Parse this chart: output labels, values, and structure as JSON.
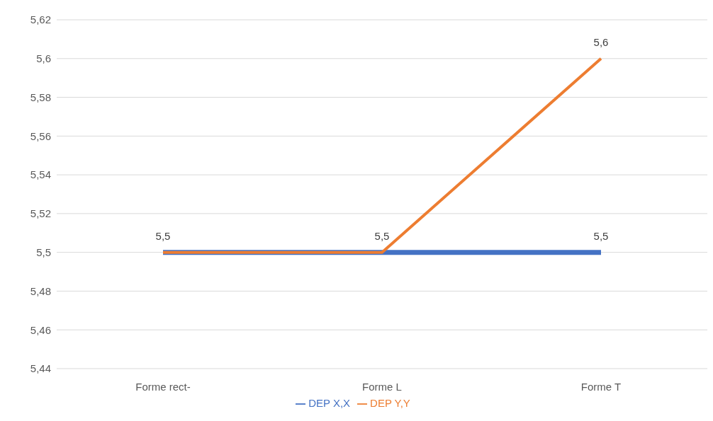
{
  "chart_data": {
    "type": "line",
    "categories": [
      "Forme rect-",
      "Forme L",
      "Forme T"
    ],
    "series": [
      {
        "name": "DEP X,X",
        "color": "#4472c4",
        "values": [
          5.5,
          5.5,
          5.5
        ],
        "value_labels": [
          "5,5",
          "5,5",
          "5,5"
        ]
      },
      {
        "name": "DEP Y,Y",
        "color": "#ed7d31",
        "values": [
          5.5,
          5.5,
          5.6
        ],
        "value_labels": [
          null,
          null,
          "5,6"
        ]
      }
    ],
    "ylim": [
      5.44,
      5.62
    ],
    "yticks": [
      {
        "value": 5.44,
        "label": "5,44"
      },
      {
        "value": 5.46,
        "label": "5,46"
      },
      {
        "value": 5.48,
        "label": "5,48"
      },
      {
        "value": 5.5,
        "label": "5,5"
      },
      {
        "value": 5.52,
        "label": "5,52"
      },
      {
        "value": 5.54,
        "label": "5,54"
      },
      {
        "value": 5.56,
        "label": "5,56"
      },
      {
        "value": 5.58,
        "label": "5,58"
      },
      {
        "value": 5.6,
        "label": "5,6"
      },
      {
        "value": 5.62,
        "label": "5,62"
      }
    ],
    "grid": "y",
    "legend": "bottom",
    "marker": "none",
    "line_style": "solid"
  }
}
